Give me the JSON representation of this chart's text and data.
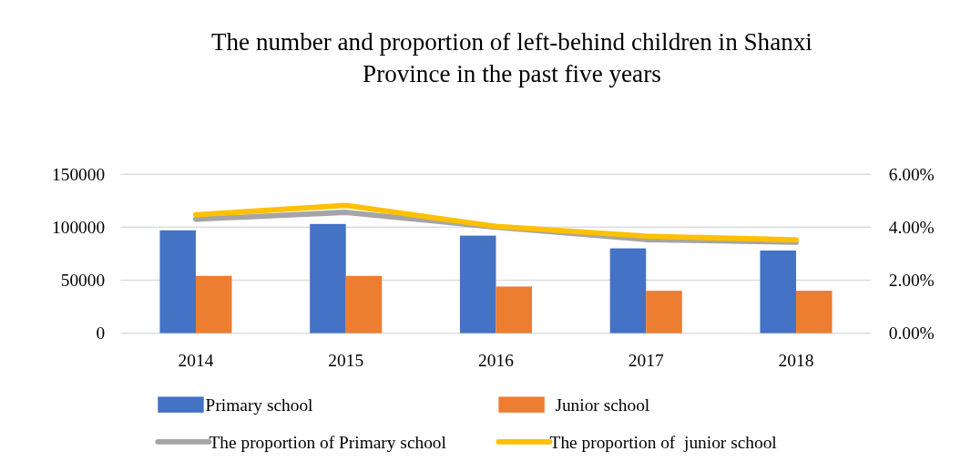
{
  "chart_data": {
    "type": "bar",
    "title": "The number and proportion of left-behind children in Shanxi Province in the past five years",
    "categories": [
      "2014",
      "2015",
      "2016",
      "2017",
      "2018"
    ],
    "series": [
      {
        "name": "Primary school",
        "color": "#4472c4",
        "values": [
          97000,
          103000,
          92000,
          80000,
          78000
        ]
      },
      {
        "name": "Junior school",
        "color": "#ed7d31",
        "values": [
          54000,
          54000,
          44000,
          40000,
          40000
        ]
      },
      {
        "name": "The proportion of Primary school",
        "type": "line",
        "axis": "y2",
        "color": "#a5a5a5",
        "values": [
          4.3,
          4.56,
          4.0,
          3.53,
          3.43
        ]
      },
      {
        "name": "The proportion of  junior school",
        "type": "line",
        "axis": "y2",
        "color": "#ffc000",
        "values": [
          4.47,
          4.82,
          4.03,
          3.66,
          3.52
        ]
      }
    ],
    "ylim": [
      0,
      150000
    ],
    "yticks": [
      0,
      50000,
      100000,
      150000
    ],
    "y2lim": [
      0,
      6
    ],
    "y2ticks": [
      {
        "value": 0,
        "label": "0.00%"
      },
      {
        "value": 2,
        "label": "2.00%"
      },
      {
        "value": 4,
        "label": "4.00%"
      },
      {
        "value": 6,
        "label": "6.00%"
      }
    ],
    "grid": "y",
    "legend": "bottom"
  }
}
